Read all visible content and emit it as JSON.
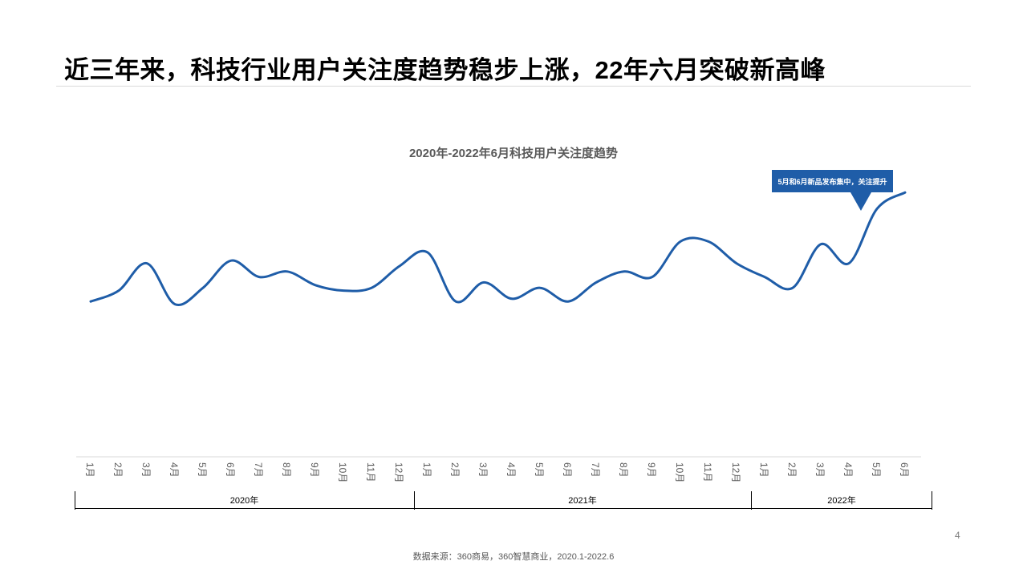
{
  "slide": {
    "title": "近三年来，科技行业用户关注度趋势稳步上涨，22年六月突破新高峰",
    "page_number": "4",
    "source": "数据来源：360商易，360智慧商业，2020.1-2022.6"
  },
  "chart_data": {
    "type": "line",
    "title": "2020年-2022年6月科技用户关注度趋势",
    "categories": [
      "1月",
      "2月",
      "3月",
      "4月",
      "5月",
      "6月",
      "7月",
      "8月",
      "9月",
      "10月",
      "11月",
      "12月",
      "1月",
      "2月",
      "3月",
      "4月",
      "5月",
      "6月",
      "7月",
      "8月",
      "9月",
      "10月",
      "11月",
      "12月",
      "1月",
      "2月",
      "3月",
      "4月",
      "5月",
      "6月"
    ],
    "category_groups": [
      {
        "label": "2020年",
        "count": 12
      },
      {
        "label": "2021年",
        "count": 12
      },
      {
        "label": "2022年",
        "count": 6
      }
    ],
    "series": [
      {
        "values": [
          57,
          61,
          71,
          56,
          62,
          72,
          66,
          68,
          63,
          61,
          62,
          70,
          75,
          57,
          64,
          58,
          62,
          57,
          64,
          68,
          66,
          79,
          79,
          71,
          66,
          62,
          78,
          71,
          91,
          97
        ],
        "color": "#1f5da8"
      }
    ],
    "ylim": [
      0,
      125
    ],
    "y_axis_visible": false,
    "grid": false,
    "legend": "none",
    "annotations": [
      {
        "text": "5月和6月新品发布集中，关注提升",
        "target_category_index": 28
      }
    ]
  }
}
